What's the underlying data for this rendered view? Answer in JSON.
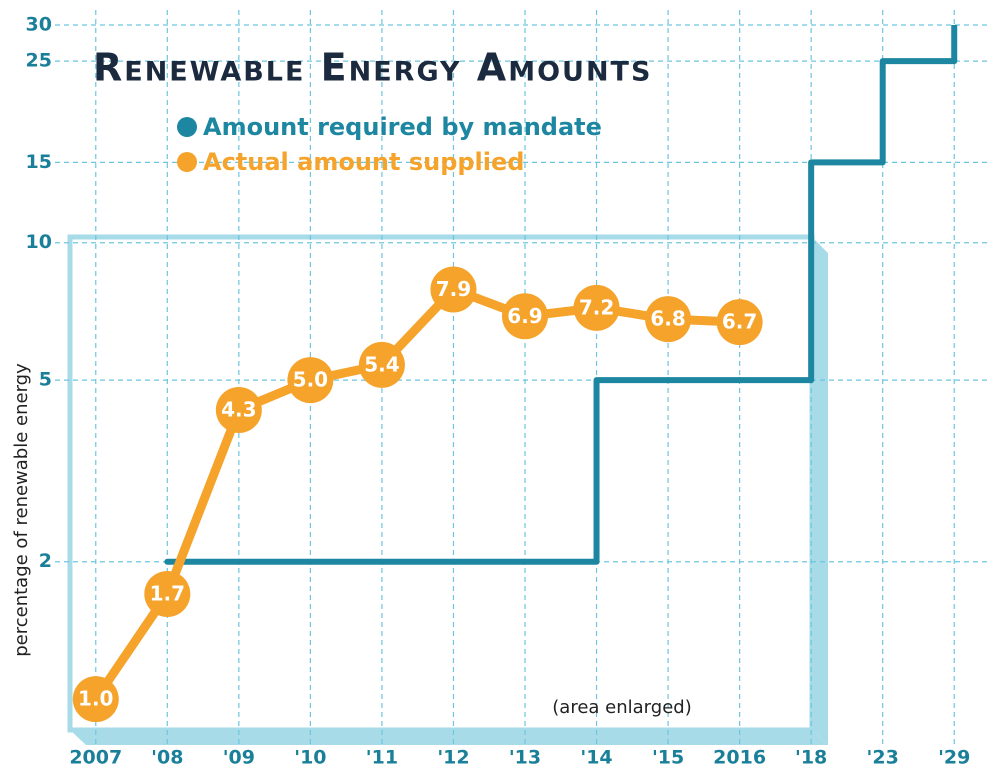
{
  "chart_data": {
    "type": "line",
    "title": "Renewable Energy Amounts",
    "y_label": "percentage of renewable energy",
    "annotation": "(area enlarged)",
    "categories": [
      "2007",
      "'08",
      "'09",
      "'10",
      "'11",
      "'12",
      "'13",
      "'14",
      "'15",
      "2016",
      "'18",
      "'23",
      "'29"
    ],
    "series": [
      {
        "name": "Amount required by mandate",
        "color": "#1d86a0",
        "step": true,
        "values": [
          null,
          2,
          2,
          2,
          2,
          2,
          2,
          5,
          5,
          5,
          15,
          25,
          30
        ]
      },
      {
        "name": "Actual amount supplied",
        "color": "#f5a32a",
        "step": false,
        "values": [
          1.0,
          1.7,
          4.3,
          5.0,
          5.4,
          7.9,
          6.9,
          7.2,
          6.8,
          6.7,
          null,
          null,
          null
        ],
        "value_labels": [
          "1.0",
          "1.7",
          "4.3",
          "5.0",
          "5.4",
          "7.9",
          "6.9",
          "7.2",
          "6.8",
          "6.7",
          null,
          null,
          null
        ]
      }
    ],
    "log_scale": true,
    "ylim": [
      0.9,
      30
    ],
    "yticks": [
      2,
      5,
      10,
      15,
      25,
      30
    ],
    "grid": true
  }
}
